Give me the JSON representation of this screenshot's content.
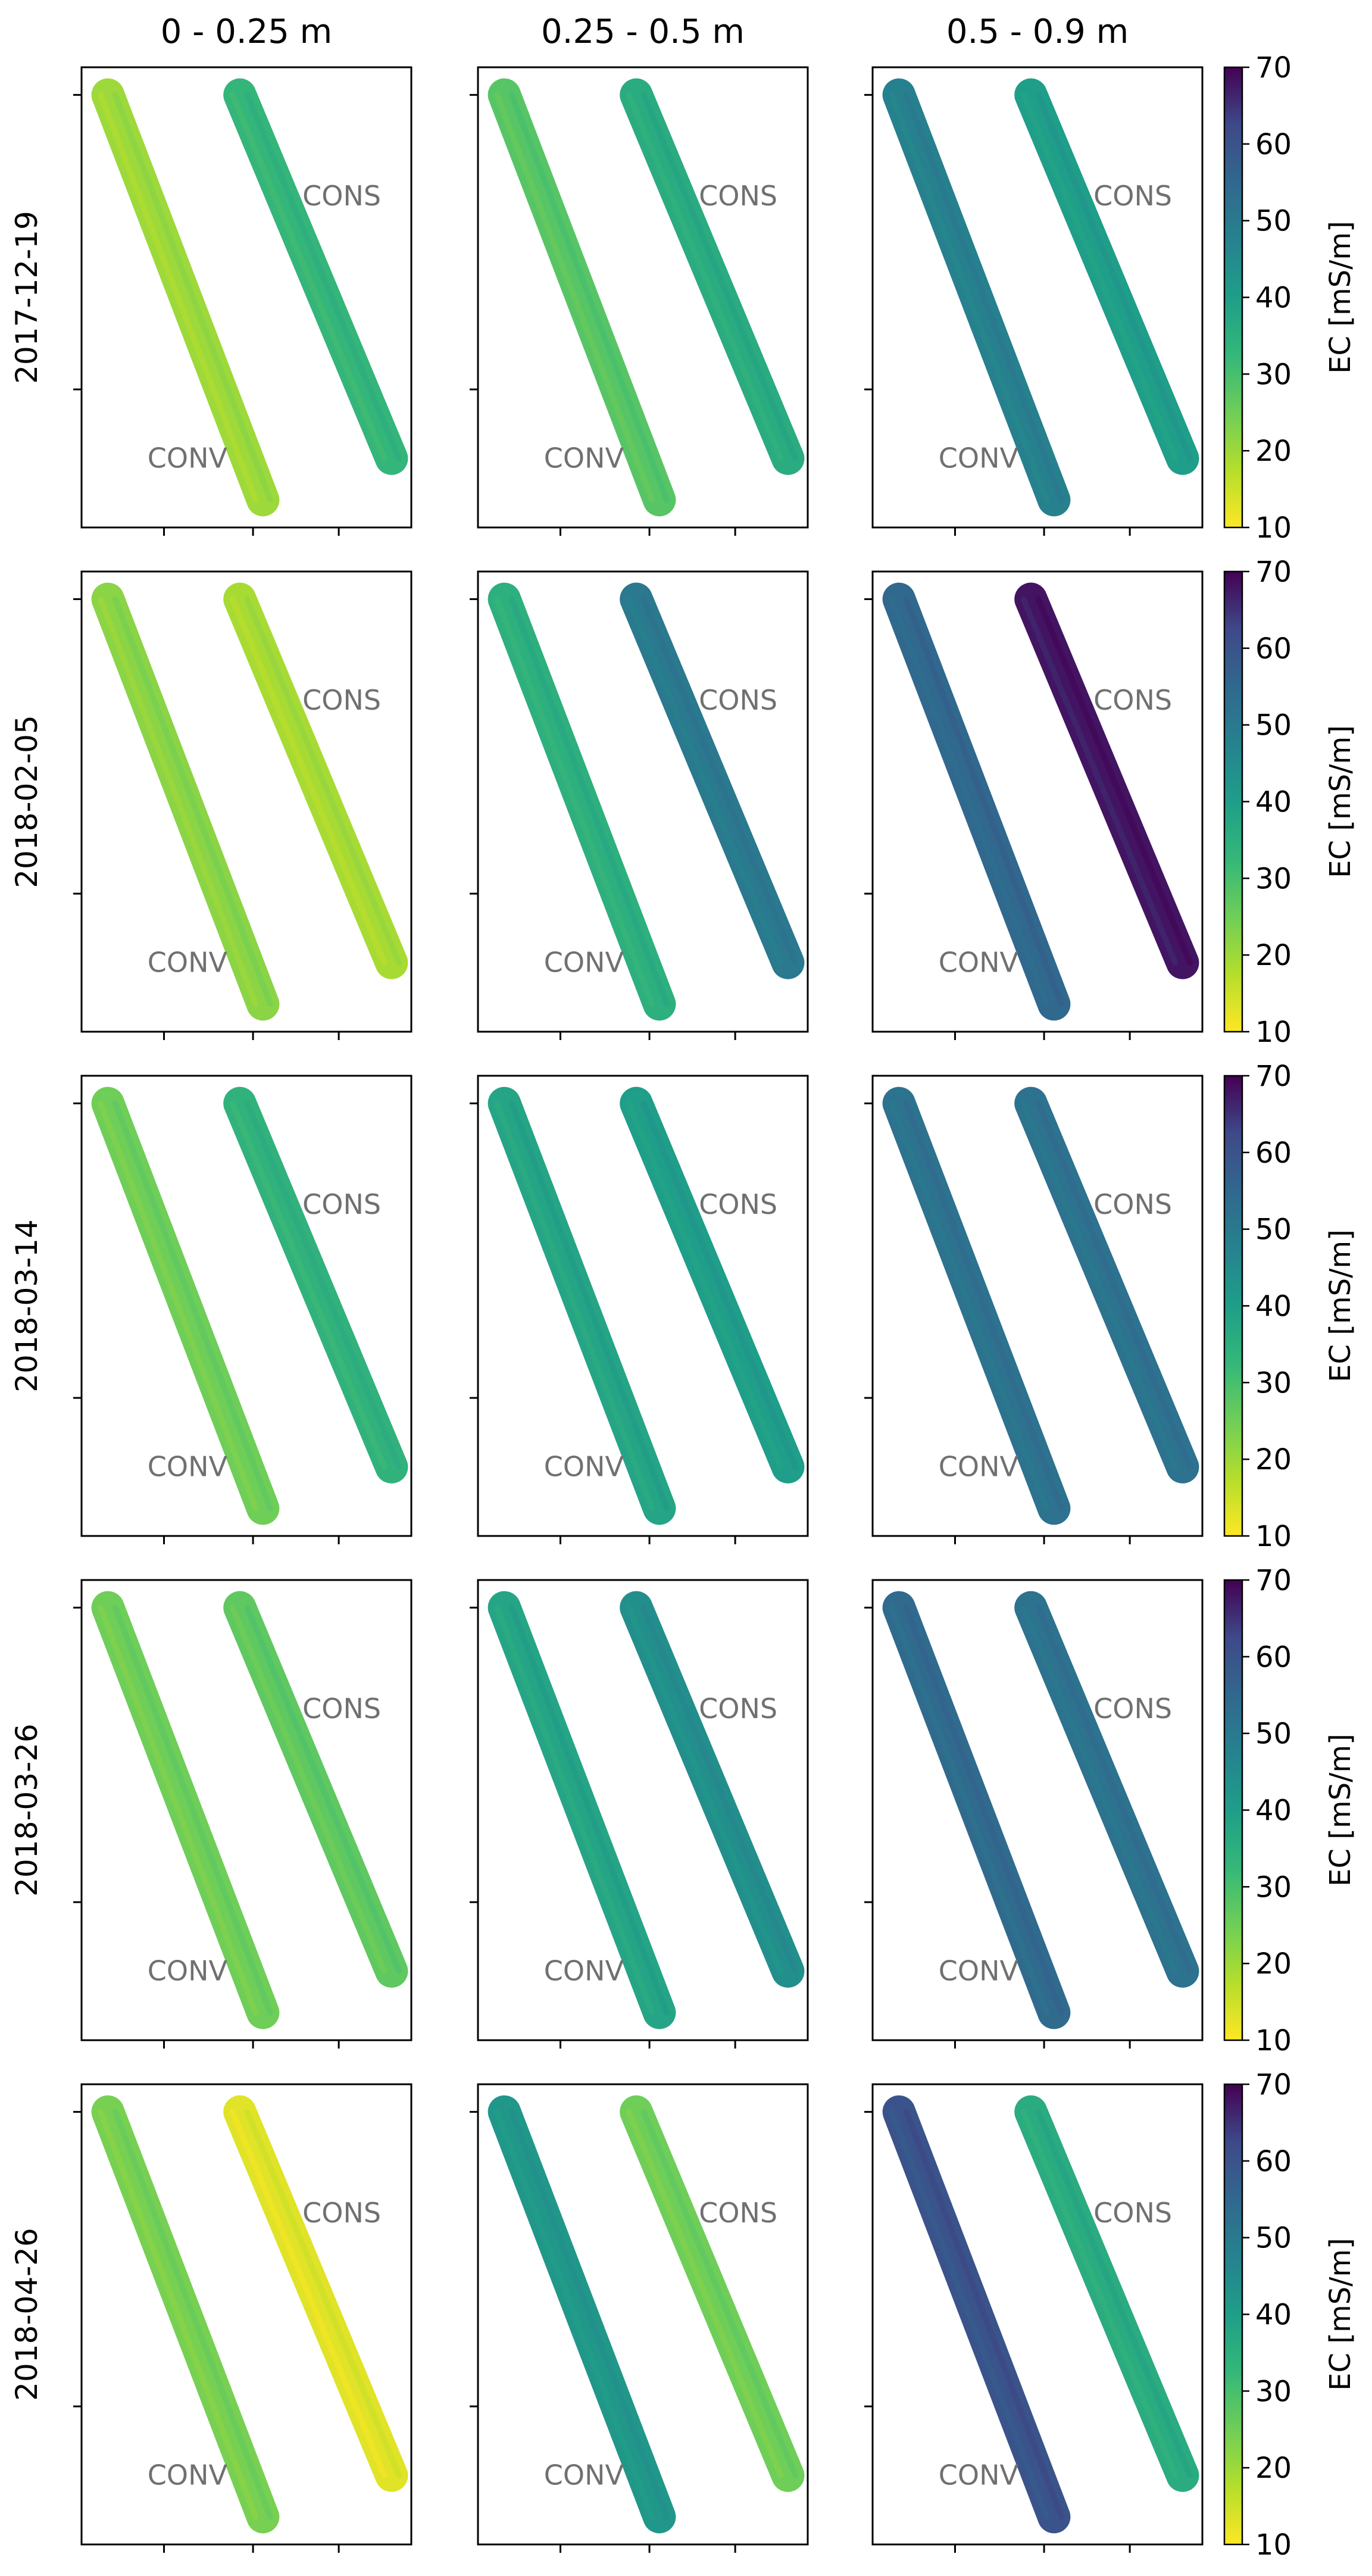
{
  "figure": {
    "column_titles": [
      "0 - 0.25 m",
      "0.25 - 0.5 m",
      "0.5 - 0.9 m"
    ],
    "row_labels": [
      "2017-12-19",
      "2018-02-05",
      "2018-03-14",
      "2018-03-26",
      "2018-04-26"
    ],
    "strip_labels": {
      "left": "CONV",
      "right": "CONS"
    },
    "colorbar": {
      "label": "EC [mS/m]",
      "ticks": [
        10,
        20,
        30,
        40,
        50,
        60,
        70
      ],
      "range": [
        10,
        70
      ],
      "colormap": "viridis (reversed: yellow = low, dark purple = high)"
    }
  },
  "chart_data": {
    "type": "heatmap",
    "description_of_values": "Mean electrical conductivity (mS/m) of each field strip per date and depth interval, estimated from colour",
    "depths": [
      "0 - 0.25 m",
      "0.25 - 0.5 m",
      "0.5 - 0.9 m"
    ],
    "dates": [
      "2017-12-19",
      "2018-02-05",
      "2018-03-14",
      "2018-03-26",
      "2018-04-26"
    ],
    "strips": [
      "CONV",
      "CONS"
    ],
    "zlabel": "EC [mS/m]",
    "zlim": [
      10,
      70
    ],
    "values": [
      [
        {
          "CONV": 20,
          "CONS": 33
        },
        {
          "CONV": 28,
          "CONS": 36
        },
        {
          "CONV": 48,
          "CONS": 40
        }
      ],
      [
        {
          "CONV": 22,
          "CONS": 19
        },
        {
          "CONV": 35,
          "CONS": 50
        },
        {
          "CONV": 55,
          "CONS": 68
        }
      ],
      [
        {
          "CONV": 25,
          "CONS": 34
        },
        {
          "CONV": 38,
          "CONS": 40
        },
        {
          "CONV": 52,
          "CONS": 52
        }
      ],
      [
        {
          "CONV": 25,
          "CONS": 27
        },
        {
          "CONV": 38,
          "CONS": 44
        },
        {
          "CONV": 54,
          "CONS": 52
        }
      ],
      [
        {
          "CONV": 24,
          "CONS": 13
        },
        {
          "CONV": 42,
          "CONS": 25
        },
        {
          "CONV": 60,
          "CONS": 36
        }
      ]
    ]
  }
}
